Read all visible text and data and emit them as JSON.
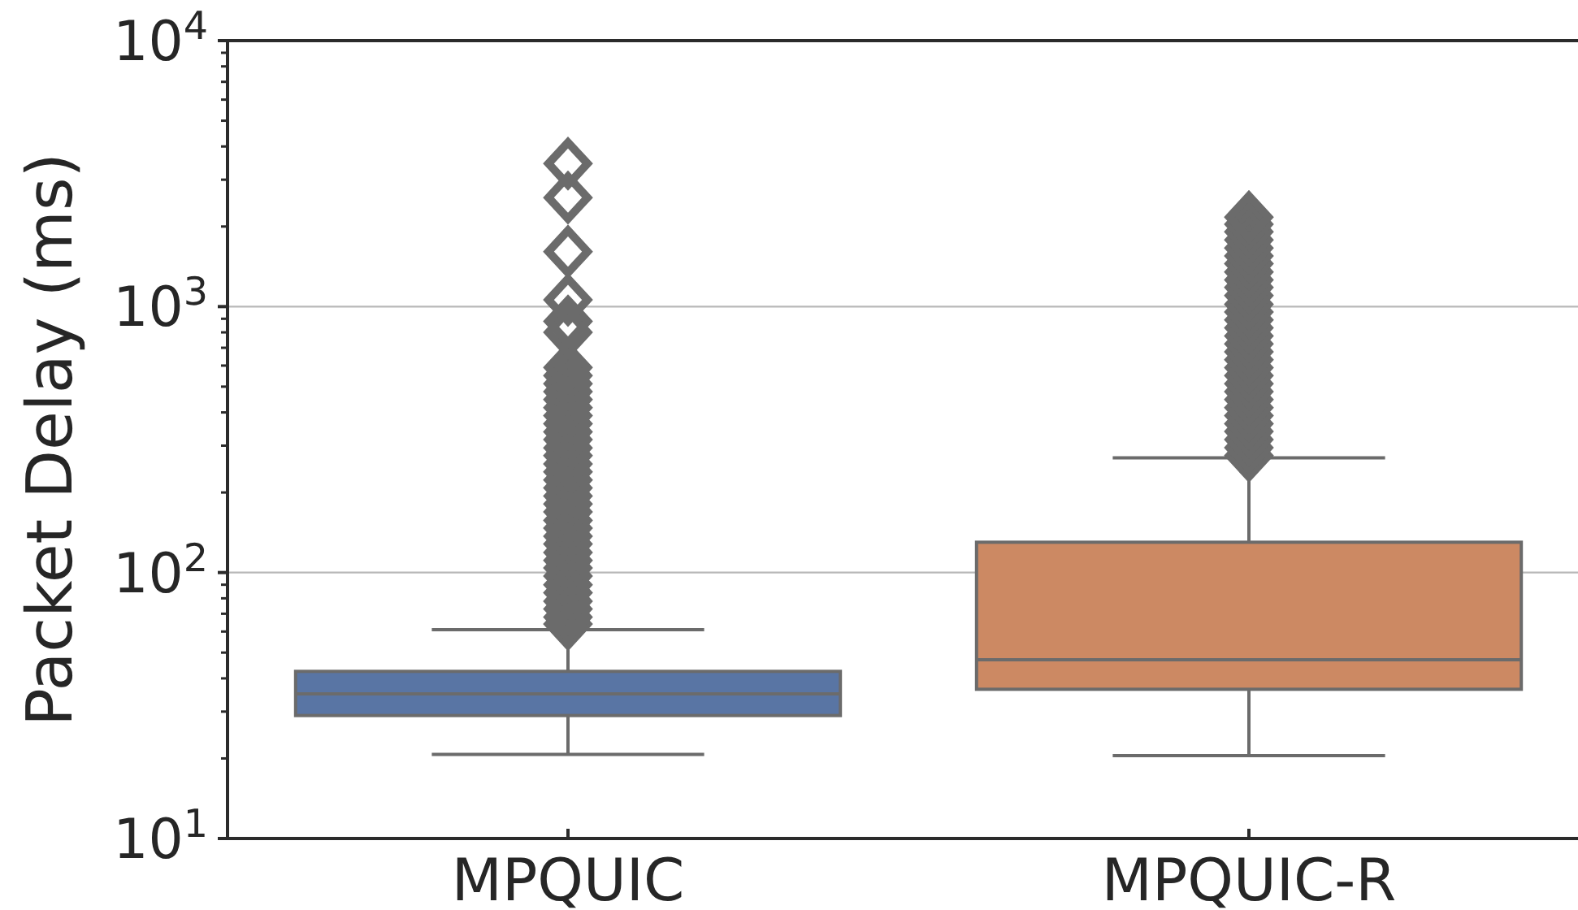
{
  "chart_data": {
    "type": "box",
    "ylabel": "Packet Delay (ms)",
    "categories": [
      "MPQUIC",
      "MPQUIC-R"
    ],
    "colors": [
      "#5975a4",
      "#cc8963"
    ],
    "boxes": [
      {
        "low": 20.7,
        "q1": 29,
        "median": 35,
        "q3": 42.5,
        "high": 61,
        "outliers": [
          64,
          68,
          73,
          78,
          84,
          90,
          97,
          104,
          111,
          119,
          128,
          137,
          147,
          157,
          169,
          181,
          194,
          208,
          223,
          239,
          256,
          275,
          294,
          316,
          338,
          363,
          389,
          417,
          447,
          479,
          513,
          550,
          590,
          800,
          880,
          1060,
          1610,
          2570,
          3450
        ]
      },
      {
        "low": 20.5,
        "q1": 36.4,
        "median": 47,
        "q3": 130,
        "high": 270,
        "outliers": [
          275,
          295,
          316,
          339,
          363,
          389,
          417,
          447,
          479,
          513,
          550,
          589,
          631,
          676,
          724,
          776,
          832,
          891,
          955,
          1020,
          1100,
          1180,
          1260,
          1350,
          1450,
          1550,
          1660,
          1780,
          1910,
          2040,
          2170
        ]
      }
    ],
    "log": true,
    "ylim": [
      10,
      10000
    ],
    "yticks": [
      {
        "value": 10,
        "label": "10$^{1}$"
      },
      {
        "value": 20,
        "label": null
      },
      {
        "value": 30,
        "label": null
      },
      {
        "value": 40,
        "label": null
      },
      {
        "value": 50,
        "label": null
      },
      {
        "value": 60,
        "label": null
      },
      {
        "value": 70,
        "label": null
      },
      {
        "value": 80,
        "label": null
      },
      {
        "value": 90,
        "label": null
      },
      {
        "value": 100,
        "label": "10$^{2}$"
      },
      {
        "value": 200,
        "label": null
      },
      {
        "value": 300,
        "label": null
      },
      {
        "value": 400,
        "label": null
      },
      {
        "value": 500,
        "label": null
      },
      {
        "value": 600,
        "label": null
      },
      {
        "value": 700,
        "label": null
      },
      {
        "value": 800,
        "label": null
      },
      {
        "value": 900,
        "label": null
      },
      {
        "value": 1000,
        "label": "10$^{3}$"
      },
      {
        "value": 2000,
        "label": null
      },
      {
        "value": 3000,
        "label": null
      },
      {
        "value": 4000,
        "label": null
      },
      {
        "value": 5000,
        "label": null
      },
      {
        "value": 6000,
        "label": null
      },
      {
        "value": 7000,
        "label": null
      },
      {
        "value": 8000,
        "label": null
      },
      {
        "value": 9000,
        "label": null
      },
      {
        "value": 10000,
        "label": "10$^{4}$"
      }
    ],
    "grid": "y"
  }
}
